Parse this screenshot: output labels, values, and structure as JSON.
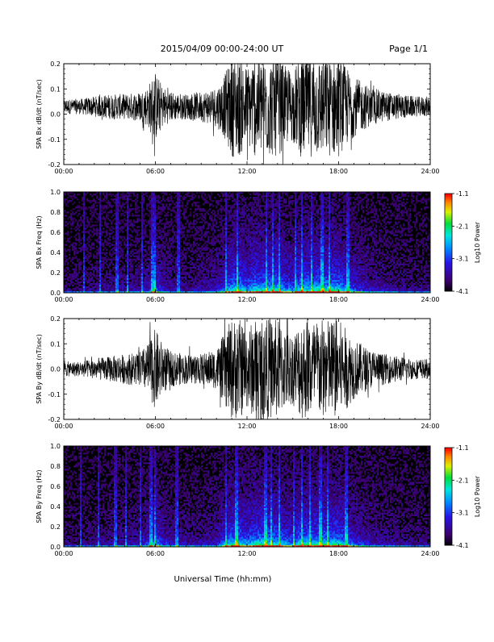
{
  "header": {
    "title": "2015/04/09  00:00-24:00 UT",
    "page": "Page 1/1"
  },
  "xaxis": {
    "label": "Universal Time (hh:mm)",
    "ticks": [
      "00:00",
      "06:00",
      "12:00",
      "18:00",
      "24:00"
    ],
    "range_hours": [
      0,
      24
    ]
  },
  "chart_data": [
    {
      "type": "line",
      "ylabel": "SPA Bx dB/dt (nT/sec)",
      "ylim": [
        -0.2,
        0.2
      ],
      "yticks": [
        "-0.2",
        "-0.1",
        "0.0",
        "0.1",
        "0.2"
      ],
      "color": "#000000",
      "envelope": {
        "x_hours": [
          0,
          1,
          2,
          3,
          4,
          5,
          5.5,
          5.8,
          6,
          6.5,
          7,
          8,
          9,
          10,
          10.5,
          11,
          11.5,
          12,
          12.5,
          13,
          13.5,
          14,
          14.5,
          15,
          15.5,
          16,
          16.5,
          17,
          17.5,
          18,
          18.5,
          19,
          19.5,
          20,
          21,
          22,
          23,
          24
        ],
        "amplitude": [
          0.03,
          0.03,
          0.04,
          0.05,
          0.05,
          0.06,
          0.08,
          0.12,
          0.14,
          0.08,
          0.06,
          0.05,
          0.06,
          0.08,
          0.12,
          0.2,
          0.2,
          0.16,
          0.2,
          0.2,
          0.2,
          0.2,
          0.16,
          0.14,
          0.2,
          0.2,
          0.2,
          0.2,
          0.2,
          0.2,
          0.16,
          0.12,
          0.1,
          0.08,
          0.06,
          0.05,
          0.04,
          0.04
        ],
        "offset": 0.03
      }
    },
    {
      "type": "heatmap",
      "ylabel": "SPA Bx Freq (Hz)",
      "ylim": [
        0.0,
        1.0
      ],
      "yticks": [
        "0.0",
        "0.2",
        "0.4",
        "0.6",
        "0.8",
        "1.0"
      ],
      "colorbar": {
        "label": "Log10 Power",
        "ticks": [
          "-1.1",
          "-2.1",
          "-3.1",
          "-4.1"
        ],
        "range": [
          -4.1,
          -1.1
        ]
      },
      "bursts_hours": [
        1.3,
        2.4,
        3.5,
        4.2,
        5.1,
        5.8,
        6.0,
        7.5,
        10.6,
        11.4,
        13.3,
        13.7,
        14.1,
        15.2,
        15.6,
        16.2,
        16.9,
        17.4,
        18.6
      ]
    },
    {
      "type": "line",
      "ylabel": "SPA By dB/dt (nT/sec)",
      "ylim": [
        -0.2,
        0.2
      ],
      "yticks": [
        "-0.2",
        "-0.1",
        "0.0",
        "0.1",
        "0.2"
      ],
      "color": "#000000",
      "envelope": {
        "x_hours": [
          0,
          1,
          2,
          3,
          4,
          5,
          5.5,
          5.8,
          6,
          6.5,
          7,
          8,
          9,
          10,
          10.5,
          11,
          11.5,
          12,
          12.5,
          13,
          13.5,
          14,
          14.5,
          15,
          15.5,
          16,
          16.5,
          17,
          17.5,
          18,
          18.5,
          19,
          19.5,
          20,
          21,
          22,
          23,
          24
        ],
        "amplitude": [
          0.03,
          0.03,
          0.04,
          0.05,
          0.06,
          0.07,
          0.1,
          0.14,
          0.16,
          0.1,
          0.07,
          0.06,
          0.06,
          0.08,
          0.14,
          0.2,
          0.2,
          0.16,
          0.2,
          0.2,
          0.2,
          0.2,
          0.16,
          0.14,
          0.2,
          0.2,
          0.2,
          0.2,
          0.2,
          0.2,
          0.16,
          0.12,
          0.1,
          0.08,
          0.06,
          0.05,
          0.04,
          0.04
        ],
        "offset": 0.0
      }
    },
    {
      "type": "heatmap",
      "ylabel": "SPA By Freq (Hz)",
      "ylim": [
        0.0,
        1.0
      ],
      "yticks": [
        "0.0",
        "0.2",
        "0.4",
        "0.6",
        "0.8",
        "1.0"
      ],
      "colorbar": {
        "label": "Log10 Power",
        "ticks": [
          "-1.1",
          "-2.1",
          "-3.1",
          "-4.1"
        ],
        "range": [
          -4.1,
          -1.1
        ]
      },
      "bursts_hours": [
        1.1,
        2.3,
        3.4,
        4.1,
        5.0,
        5.7,
        6.0,
        7.4,
        10.6,
        11.3,
        13.2,
        13.6,
        14.1,
        15.1,
        15.6,
        16.1,
        16.8,
        17.3,
        18.5
      ]
    }
  ]
}
